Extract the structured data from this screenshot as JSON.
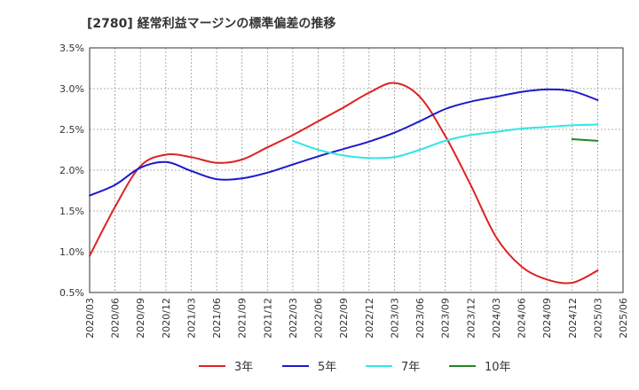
{
  "chart_data": {
    "type": "line",
    "title": "[2780]  経常利益マージンの標準偏差の推移",
    "xlabel": "",
    "ylabel": "",
    "y_ticks": [
      "3.5%",
      "3.0%",
      "2.5%",
      "2.0%",
      "1.5%",
      "1.0%",
      "0.5%"
    ],
    "ylim": [
      0.5,
      3.5
    ],
    "x_ticks": [
      "2020/03",
      "2020/06",
      "2020/09",
      "2020/12",
      "2021/03",
      "2021/06",
      "2021/09",
      "2021/12",
      "2022/03",
      "2022/06",
      "2022/09",
      "2022/12",
      "2023/03",
      "2023/06",
      "2023/09",
      "2023/12",
      "2024/03",
      "2024/06",
      "2024/09",
      "2024/12",
      "2025/03",
      "2025/06"
    ],
    "grid": true,
    "legend_position": "bottom",
    "series": [
      {
        "name": "3年",
        "color": "#dd2222",
        "x": [
          "2020/03",
          "2020/06",
          "2020/09",
          "2020/12",
          "2021/03",
          "2021/06",
          "2021/09",
          "2021/12",
          "2022/03",
          "2022/06",
          "2022/09",
          "2022/12",
          "2023/03",
          "2023/06",
          "2023/09",
          "2023/12",
          "2024/03",
          "2024/06",
          "2024/09",
          "2024/12",
          "2025/03"
        ],
        "values": [
          0.95,
          1.55,
          2.05,
          2.19,
          2.16,
          2.09,
          2.13,
          2.28,
          2.43,
          2.6,
          2.77,
          2.95,
          3.07,
          2.9,
          2.42,
          1.82,
          1.18,
          0.82,
          0.66,
          0.62,
          0.77
        ]
      },
      {
        "name": "5年",
        "color": "#1a1acc",
        "x": [
          "2020/03",
          "2020/06",
          "2020/09",
          "2020/12",
          "2021/03",
          "2021/06",
          "2021/09",
          "2021/12",
          "2022/03",
          "2022/06",
          "2022/09",
          "2022/12",
          "2023/03",
          "2023/06",
          "2023/09",
          "2023/12",
          "2024/03",
          "2024/06",
          "2024/09",
          "2024/12",
          "2025/03"
        ],
        "values": [
          1.69,
          1.82,
          2.03,
          2.1,
          1.99,
          1.89,
          1.9,
          1.97,
          2.07,
          2.17,
          2.26,
          2.35,
          2.46,
          2.6,
          2.75,
          2.84,
          2.9,
          2.96,
          2.99,
          2.97,
          2.86
        ]
      },
      {
        "name": "7年",
        "color": "#33e5e5",
        "x": [
          "2022/03",
          "2022/06",
          "2022/09",
          "2022/12",
          "2023/03",
          "2023/06",
          "2023/09",
          "2023/12",
          "2024/03",
          "2024/06",
          "2024/09",
          "2024/12",
          "2025/03"
        ],
        "values": [
          2.36,
          2.25,
          2.18,
          2.15,
          2.16,
          2.25,
          2.36,
          2.43,
          2.47,
          2.51,
          2.53,
          2.55,
          2.56
        ]
      },
      {
        "name": "10年",
        "color": "#228822",
        "x": [
          "2024/12",
          "2025/03"
        ],
        "values": [
          2.38,
          2.36
        ]
      }
    ]
  }
}
